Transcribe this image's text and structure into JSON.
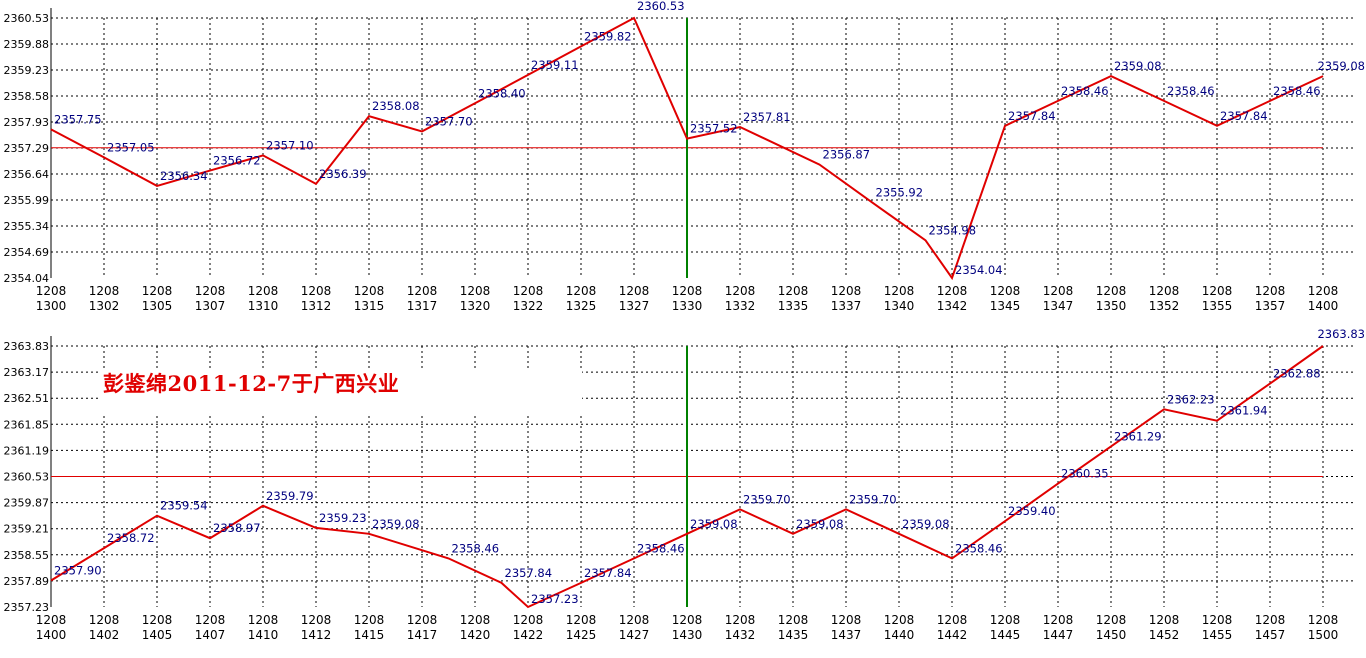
{
  "colors": {
    "line": "#e00000",
    "reference_line": "#e00000",
    "marker_line": "#008000",
    "grid": "#000000",
    "value_label": "#00007f",
    "axis_text": "#000000"
  },
  "watermark": "彭鉴绵2011-12-7于广西兴业",
  "chart_data": [
    {
      "type": "line",
      "x_top_labels": [
        "1208",
        "1208",
        "1208",
        "1208",
        "1208",
        "1208",
        "1208",
        "1208",
        "1208",
        "1208",
        "1208",
        "1208",
        "1208",
        "1208",
        "1208",
        "1208",
        "1208",
        "1208",
        "1208",
        "1208",
        "1208",
        "1208",
        "1208",
        "1208",
        "1208"
      ],
      "x_bottom_labels": [
        "1300",
        "1302",
        "1305",
        "1307",
        "1310",
        "1312",
        "1315",
        "1317",
        "1320",
        "1322",
        "1325",
        "1327",
        "1330",
        "1332",
        "1335",
        "1337",
        "1340",
        "1342",
        "1345",
        "1347",
        "1350",
        "1352",
        "1355",
        "1357",
        "1400"
      ],
      "y_ticks": [
        "2360.53",
        "2359.88",
        "2359.23",
        "2358.58",
        "2357.93",
        "2357.29",
        "2356.64",
        "2355.99",
        "2355.34",
        "2354.69",
        "2354.04"
      ],
      "ylim": [
        2354.04,
        2360.53
      ],
      "reference_value": 2357.29,
      "marker_index": 12,
      "points": [
        {
          "i": 0,
          "v": 2357.75,
          "label": "2357.75"
        },
        {
          "i": 1,
          "v": 2357.05,
          "label": "2357.05"
        },
        {
          "i": 2,
          "v": 2356.34,
          "label": "2356.34"
        },
        {
          "i": 3,
          "v": 2356.72,
          "label": "2356.72"
        },
        {
          "i": 4,
          "v": 2357.1,
          "label": "2357.10"
        },
        {
          "i": 5,
          "v": 2356.39,
          "label": "2356.39"
        },
        {
          "i": 6,
          "v": 2358.08,
          "label": "2358.08"
        },
        {
          "i": 7,
          "v": 2357.7,
          "label": "2357.70"
        },
        {
          "i": 8,
          "v": 2358.4,
          "label": "2358.40"
        },
        {
          "i": 9,
          "v": 2359.11,
          "label": "2359.11"
        },
        {
          "i": 10,
          "v": 2359.82,
          "label": "2359.82"
        },
        {
          "i": 11,
          "v": 2360.53,
          "label": "2360.53"
        },
        {
          "i": 12,
          "v": 2357.52,
          "label": "2357.52"
        },
        {
          "i": 13,
          "v": 2357.81,
          "label": "2357.81"
        },
        {
          "i": 14.5,
          "v": 2356.87,
          "label": "2356.87"
        },
        {
          "i": 15.5,
          "v": 2355.92,
          "label": "2355.92"
        },
        {
          "i": 16.5,
          "v": 2354.98,
          "label": "2354.98"
        },
        {
          "i": 17,
          "v": 2354.04,
          "label": "2354.04"
        },
        {
          "i": 18,
          "v": 2357.84,
          "label": "2357.84"
        },
        {
          "i": 19,
          "v": 2358.46,
          "label": "2358.46"
        },
        {
          "i": 20,
          "v": 2359.08,
          "label": "2359.08"
        },
        {
          "i": 21,
          "v": 2358.46,
          "label": "2358.46"
        },
        {
          "i": 22,
          "v": 2357.84,
          "label": "2357.84"
        },
        {
          "i": 23,
          "v": 2358.46,
          "label": "2358.46"
        },
        {
          "i": 24,
          "v": 2359.08,
          "label": "2359.08"
        }
      ]
    },
    {
      "type": "line",
      "x_top_labels": [
        "1208",
        "1208",
        "1208",
        "1208",
        "1208",
        "1208",
        "1208",
        "1208",
        "1208",
        "1208",
        "1208",
        "1208",
        "1208",
        "1208",
        "1208",
        "1208",
        "1208",
        "1208",
        "1208",
        "1208",
        "1208",
        "1208",
        "1208",
        "1208",
        "1208"
      ],
      "x_bottom_labels": [
        "1400",
        "1402",
        "1405",
        "1407",
        "1410",
        "1412",
        "1415",
        "1417",
        "1420",
        "1422",
        "1425",
        "1427",
        "1430",
        "1432",
        "1435",
        "1437",
        "1440",
        "1442",
        "1445",
        "1447",
        "1450",
        "1452",
        "1455",
        "1457",
        "1500"
      ],
      "y_ticks": [
        "2363.83",
        "2363.17",
        "2362.51",
        "2361.85",
        "2361.19",
        "2360.53",
        "2359.87",
        "2359.21",
        "2358.55",
        "2357.89",
        "2357.23"
      ],
      "ylim": [
        2357.23,
        2363.83
      ],
      "reference_value": 2360.53,
      "marker_index": 12,
      "points": [
        {
          "i": 0,
          "v": 2357.9,
          "label": "2357.90"
        },
        {
          "i": 1,
          "v": 2358.72,
          "label": "2358.72"
        },
        {
          "i": 2,
          "v": 2359.54,
          "label": "2359.54"
        },
        {
          "i": 3,
          "v": 2358.97,
          "label": "2358.97"
        },
        {
          "i": 4,
          "v": 2359.79,
          "label": "2359.79"
        },
        {
          "i": 5,
          "v": 2359.23,
          "label": "2359.23"
        },
        {
          "i": 6,
          "v": 2359.08,
          "label": "2359.08"
        },
        {
          "i": 7.5,
          "v": 2358.46,
          "label": "2358.46"
        },
        {
          "i": 8.5,
          "v": 2357.84,
          "label": "2357.84"
        },
        {
          "i": 9,
          "v": 2357.23,
          "label": "2357.23"
        },
        {
          "i": 10,
          "v": 2357.84,
          "label": "2357.84"
        },
        {
          "i": 11,
          "v": 2358.46,
          "label": "2358.46"
        },
        {
          "i": 12,
          "v": 2359.08,
          "label": "2359.08"
        },
        {
          "i": 13,
          "v": 2359.7,
          "label": "2359.70"
        },
        {
          "i": 14,
          "v": 2359.08,
          "label": "2359.08"
        },
        {
          "i": 15,
          "v": 2359.7,
          "label": "2359.70"
        },
        {
          "i": 16,
          "v": 2359.08,
          "label": "2359.08"
        },
        {
          "i": 17,
          "v": 2358.46,
          "label": "2358.46"
        },
        {
          "i": 18,
          "v": 2359.4,
          "label": "2359.40"
        },
        {
          "i": 19,
          "v": 2360.35,
          "label": "2360.35"
        },
        {
          "i": 20,
          "v": 2361.29,
          "label": "2361.29"
        },
        {
          "i": 21,
          "v": 2362.23,
          "label": "2362.23"
        },
        {
          "i": 22,
          "v": 2361.94,
          "label": "2361.94"
        },
        {
          "i": 23,
          "v": 2362.88,
          "label": "2362.88"
        },
        {
          "i": 24,
          "v": 2363.83,
          "label": "2363.83"
        }
      ]
    }
  ]
}
